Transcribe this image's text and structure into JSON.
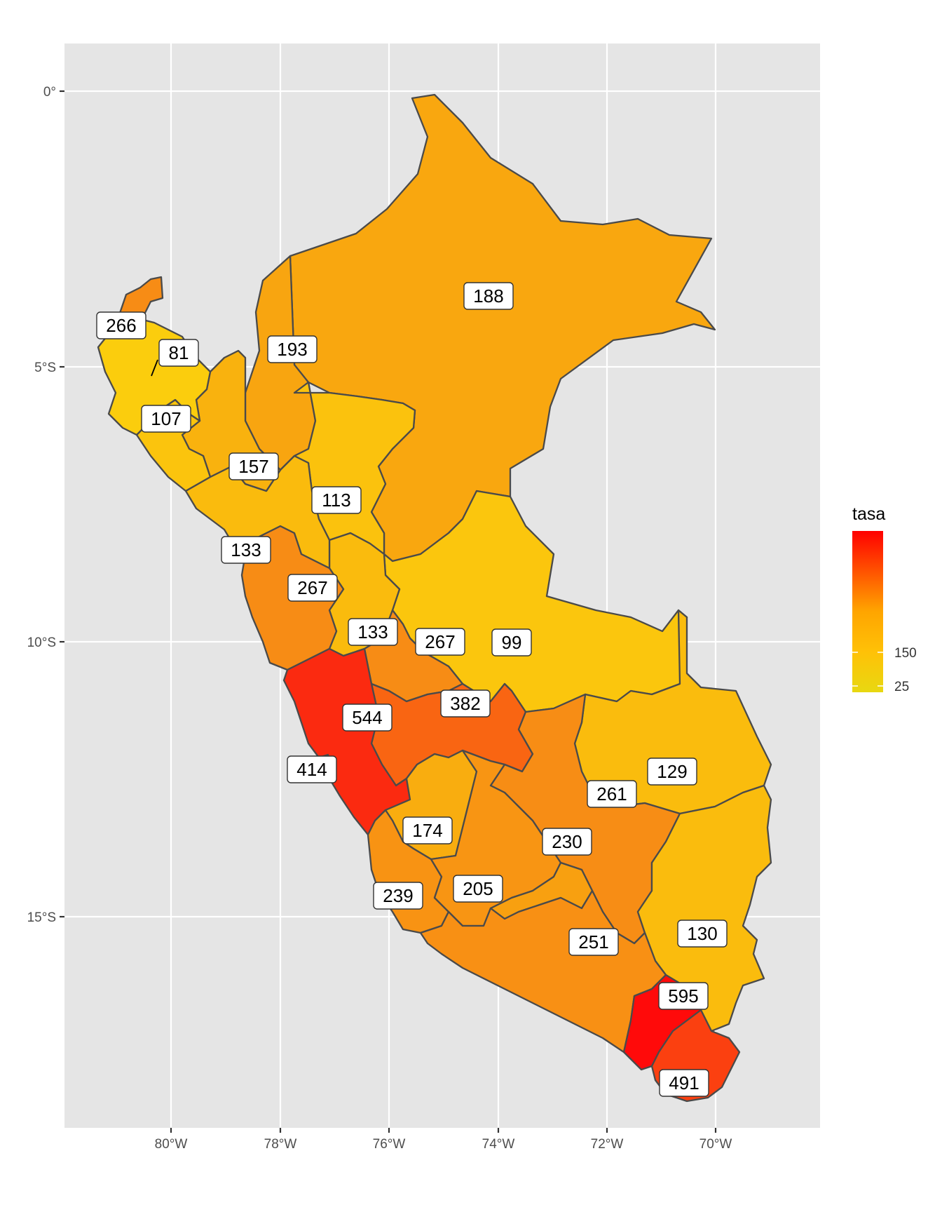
{
  "legend": {
    "title": "tasa",
    "breaks": [
      25,
      150
    ],
    "range": [
      10,
      595
    ],
    "low_color": "#e8d811",
    "mid_color": "#ffa500",
    "high_color": "#ff0000"
  },
  "axes": {
    "x_ticks": [
      "80°W",
      "78°W",
      "76°W",
      "74°W",
      "72°W",
      "70°W"
    ],
    "y_ticks": [
      "0°",
      "5°S",
      "10°S",
      "15°S"
    ]
  },
  "regions": [
    {
      "name": "loreto",
      "value": 188,
      "label": "188",
      "color": "#f9a70f"
    },
    {
      "name": "tumbes",
      "value": 266,
      "label": "266",
      "color": "#f78c15"
    },
    {
      "name": "piura",
      "value": 81,
      "label": "81",
      "color": "#fbcd0d"
    },
    {
      "name": "lambayeque",
      "value": 107,
      "label": "107",
      "color": "#fbc40d"
    },
    {
      "name": "cajamarca",
      "value": 157,
      "label": "157",
      "color": "#f9b20e"
    },
    {
      "name": "amazonas",
      "value": 193,
      "label": "193",
      "color": "#f8a510"
    },
    {
      "name": "san-martin",
      "value": 113,
      "label": "113",
      "color": "#fbc20d"
    },
    {
      "name": "la-libertad",
      "value": 133,
      "label": "133",
      "color": "#fabb0d"
    },
    {
      "name": "ancash",
      "value": 267,
      "label": "267",
      "color": "#f78c15"
    },
    {
      "name": "huanuco",
      "value": 133,
      "label": "133",
      "color": "#fabb0d"
    },
    {
      "name": "pasco",
      "value": 267,
      "label": "267",
      "color": "#f78c15"
    },
    {
      "name": "ucayali",
      "value": 99,
      "label": "99",
      "color": "#fbc60d"
    },
    {
      "name": "lima",
      "value": 544,
      "label": "544",
      "color": "#fb2a10"
    },
    {
      "name": "callao",
      "value": 414,
      "label": "414",
      "color": "#fb3a10"
    },
    {
      "name": "junin",
      "value": 382,
      "label": "382",
      "color": "#f96512"
    },
    {
      "name": "madre-de-dios",
      "value": 129,
      "label": "129",
      "color": "#fabc0d"
    },
    {
      "name": "cusco",
      "value": 261,
      "label": "261",
      "color": "#f78d15"
    },
    {
      "name": "huancavelica",
      "value": 174,
      "label": "174",
      "color": "#f9ad0f"
    },
    {
      "name": "ayacucho",
      "value": 230,
      "label": "230",
      "color": "#f89513"
    },
    {
      "name": "ica",
      "value": 239,
      "label": "239",
      "color": "#f89313"
    },
    {
      "name": "apurimac",
      "value": 205,
      "label": "205",
      "color": "#f8a010"
    },
    {
      "name": "arequipa",
      "value": 251,
      "label": "251",
      "color": "#f89014"
    },
    {
      "name": "puno",
      "value": 130,
      "label": "130",
      "color": "#fabc0d"
    },
    {
      "name": "moquegua",
      "value": 595,
      "label": "595",
      "color": "#ff0a0a"
    },
    {
      "name": "tacna",
      "value": 491,
      "label": "491",
      "color": "#fb4010"
    }
  ]
}
